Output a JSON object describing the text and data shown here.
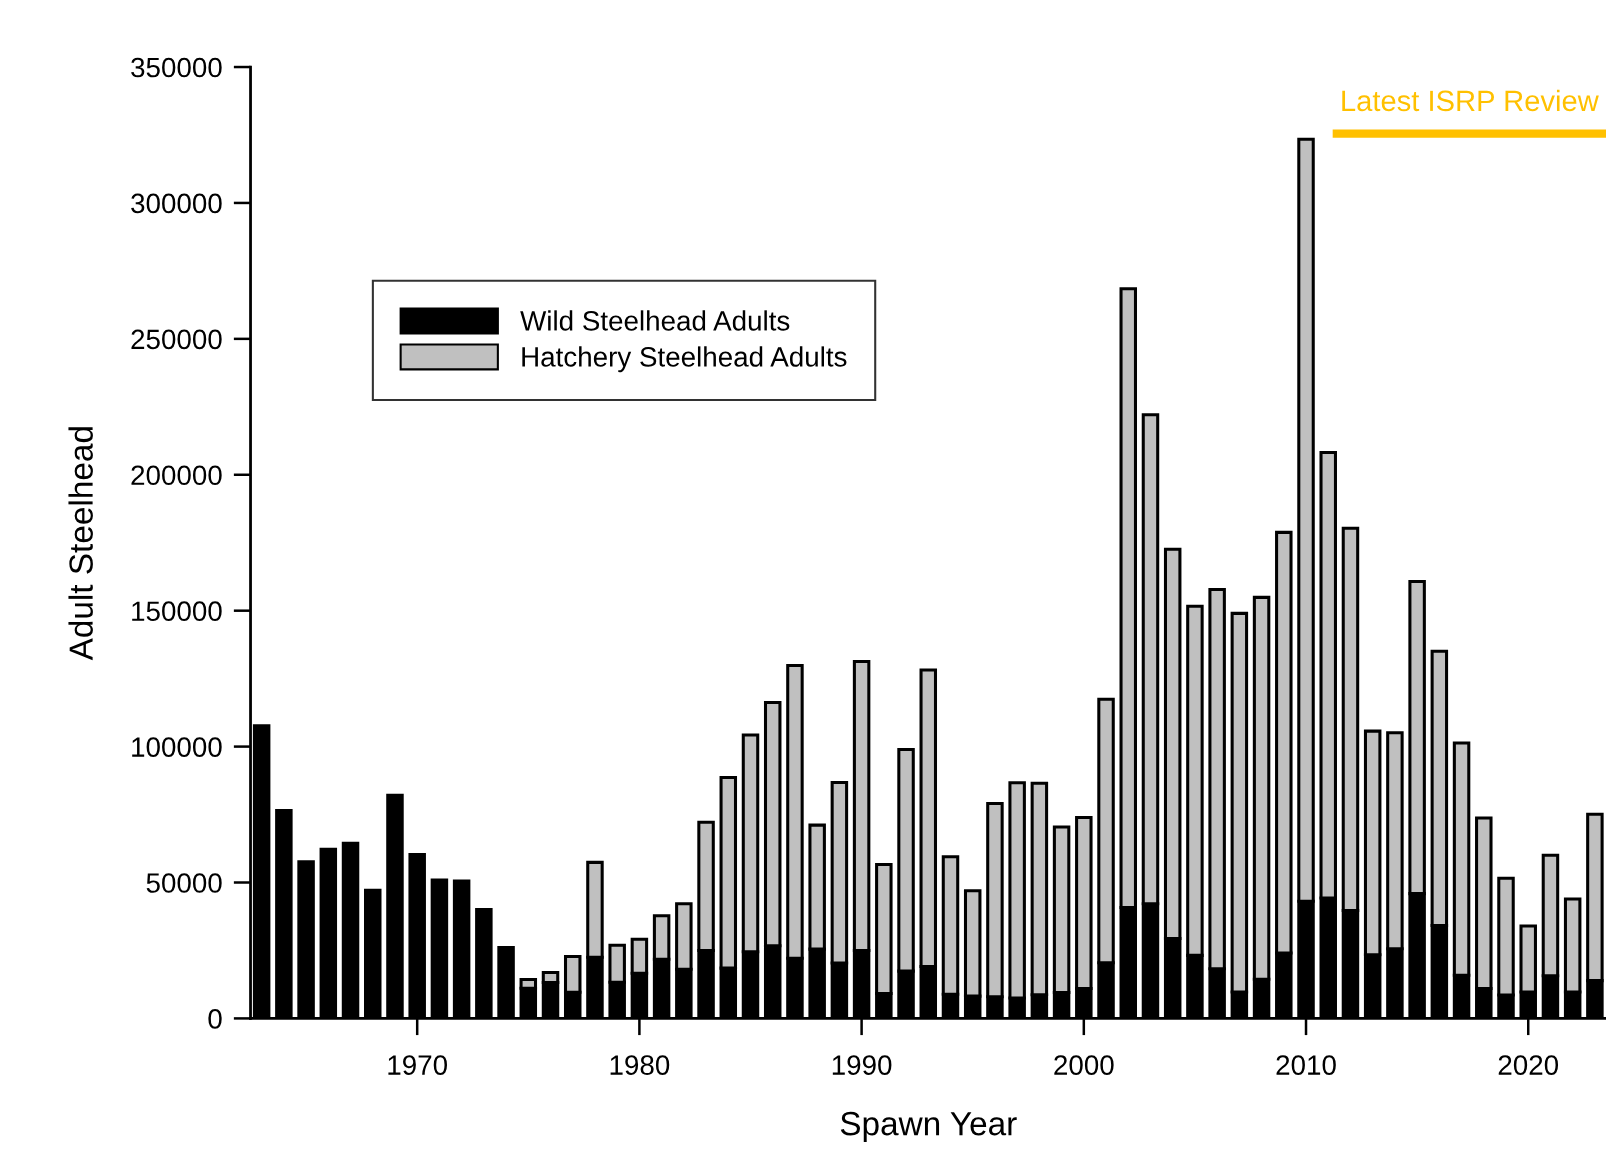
{
  "chart_data": {
    "type": "bar",
    "stacked": true,
    "xlabel": "Spawn Year",
    "ylabel": "Adult Steelhead",
    "x": [
      1963,
      1964,
      1965,
      1966,
      1967,
      1968,
      1969,
      1970,
      1971,
      1972,
      1973,
      1974,
      1975,
      1976,
      1977,
      1978,
      1979,
      1980,
      1981,
      1982,
      1983,
      1984,
      1985,
      1986,
      1987,
      1988,
      1989,
      1990,
      1991,
      1992,
      1993,
      1994,
      1995,
      1996,
      1997,
      1998,
      1999,
      2000,
      2001,
      2002,
      2003,
      2004,
      2005,
      2006,
      2007,
      2008,
      2009,
      2010,
      2011,
      2012,
      2013,
      2014,
      2015,
      2016,
      2017,
      2018,
      2019,
      2020,
      2021,
      2022,
      2023
    ],
    "series": [
      {
        "name": "Wild Steelhead Adults",
        "color": "#000000",
        "values": [
          107700,
          76500,
          57600,
          62200,
          64400,
          47100,
          82100,
          60300,
          50900,
          50500,
          40100,
          26100,
          11100,
          13200,
          9600,
          22500,
          13300,
          16600,
          21800,
          18100,
          25000,
          18500,
          24500,
          26700,
          22100,
          25500,
          20400,
          25000,
          9200,
          17400,
          19100,
          8900,
          8200,
          8000,
          7500,
          8700,
          9500,
          11000,
          20500,
          40800,
          42200,
          29400,
          23200,
          18300,
          9700,
          14400,
          24100,
          43100,
          44300,
          39700,
          23400,
          25600,
          45900,
          34200,
          15900,
          11000,
          8600,
          9700,
          15700,
          9700,
          13900
        ]
      },
      {
        "name": "Hatchery Steelhead Adults",
        "color": "#c0c0c0",
        "values": [
          0,
          0,
          0,
          0,
          0,
          0,
          0,
          0,
          0,
          0,
          0,
          0,
          3200,
          3700,
          13200,
          34900,
          13600,
          12500,
          16000,
          24100,
          47200,
          70100,
          79800,
          89500,
          107700,
          45600,
          66400,
          106300,
          47400,
          81500,
          109100,
          50600,
          38800,
          71100,
          79200,
          77800,
          60900,
          62900,
          96900,
          227600,
          179900,
          143200,
          128400,
          139500,
          139300,
          140500,
          154700,
          280300,
          163900,
          140600,
          82300,
          79500,
          114800,
          100900,
          85400,
          62700,
          43000,
          24300,
          44300,
          34200,
          61200
        ]
      },
      {
        "type": "line",
        "color": "#ffc000",
        "x": [
          2011.2,
          2023.5
        ],
        "values": [
          325500,
          325500
        ]
      }
    ],
    "xlim": [
      1962.5,
      2023.5
    ],
    "xticks": [
      1970,
      1980,
      1990,
      2000,
      2010,
      2020
    ],
    "ylim": [
      0,
      350000
    ],
    "yticks": [
      0,
      50000,
      100000,
      150000,
      200000,
      250000,
      300000,
      350000
    ],
    "annotations": [
      {
        "text": "Latest ISRP Review",
        "x": 2017.35,
        "y": 325500
      }
    ],
    "legend": "top left",
    "grid": false
  }
}
